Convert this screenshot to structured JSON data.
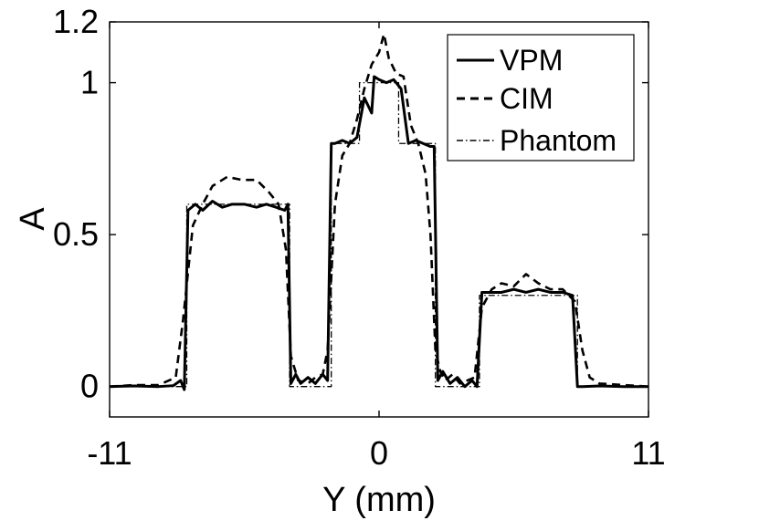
{
  "chart_data": {
    "type": "line",
    "title": "",
    "xlabel": "Y (mm)",
    "ylabel": "A",
    "xlim": [
      -11,
      11
    ],
    "ylim": [
      -0.1,
      1.2
    ],
    "xticks": [
      -11,
      0,
      11
    ],
    "xtick_labels": [
      "-11",
      "0",
      "11"
    ],
    "yticks": [
      0,
      0.5,
      1,
      1.2
    ],
    "ytick_labels": [
      "0",
      "0.5",
      "1",
      "1.2"
    ],
    "grid": false,
    "legend_position": "top-right",
    "series": [
      {
        "name": "VPM",
        "style": "solid",
        "color": "#000000",
        "x": [
          -11,
          -10,
          -9,
          -8.4,
          -8.1,
          -7.95,
          -7.8,
          -7.5,
          -7.2,
          -6.8,
          -6.4,
          -6,
          -5.5,
          -5,
          -4.6,
          -4.2,
          -3.85,
          -3.72,
          -3.6,
          -3.4,
          -3.2,
          -2.9,
          -2.6,
          -2.3,
          -2.1,
          -1.95,
          -1.8,
          -1.5,
          -1.2,
          -0.9,
          -0.6,
          -0.3,
          -0.2,
          0,
          0.3,
          0.6,
          0.9,
          1.2,
          1.5,
          1.8,
          2.1,
          2.25,
          2.4,
          2.6,
          2.9,
          3.2,
          3.5,
          3.8,
          4,
          4.2,
          4.5,
          5,
          5.5,
          6,
          6.5,
          7,
          7.5,
          7.9,
          8.1,
          8.3,
          9,
          10,
          11
        ],
        "y": [
          0,
          0.002,
          0,
          0.003,
          0.02,
          -0.01,
          0.58,
          0.6,
          0.58,
          0.61,
          0.59,
          0.6,
          0.6,
          0.59,
          0.6,
          0.59,
          0.58,
          0.6,
          0.01,
          0.04,
          0.01,
          0.03,
          0.01,
          0.04,
          0.02,
          0.8,
          0.8,
          0.81,
          0.8,
          0.82,
          0.95,
          0.9,
          1.02,
          1.01,
          1.0,
          1.01,
          0.98,
          0.8,
          0.81,
          0.8,
          0.79,
          0.79,
          0.02,
          0.05,
          0.01,
          0.03,
          0.0,
          0.02,
          0.0,
          0.31,
          0.31,
          0.31,
          0.32,
          0.31,
          0.32,
          0.31,
          0.31,
          0.3,
          0.0,
          0.0,
          0.002,
          0,
          0
        ]
      },
      {
        "name": "CIM",
        "style": "dashed",
        "color": "#000000",
        "x": [
          -11,
          -10,
          -9,
          -8.3,
          -8,
          -7.6,
          -7.2,
          -6.8,
          -6.2,
          -5.6,
          -5,
          -4.5,
          -4.1,
          -3.8,
          -3.6,
          -3.3,
          -2.9,
          -2.6,
          -2.3,
          -2.1,
          -1.8,
          -1.5,
          -1.2,
          -0.9,
          -0.6,
          -0.3,
          0,
          0.2,
          0.4,
          0.7,
          1,
          1.3,
          1.6,
          1.9,
          2.1,
          2.3,
          2.5,
          2.7,
          3,
          3.3,
          3.6,
          3.9,
          4.2,
          4.6,
          5,
          5.5,
          6,
          6.5,
          7,
          7.5,
          8,
          8.3,
          8.6,
          9,
          10,
          11
        ],
        "y": [
          0,
          0.005,
          0.005,
          0.03,
          0.22,
          0.53,
          0.6,
          0.66,
          0.69,
          0.68,
          0.68,
          0.64,
          0.6,
          0.45,
          0.1,
          0.02,
          0.01,
          0.03,
          0.04,
          0.12,
          0.6,
          0.76,
          0.8,
          0.88,
          0.98,
          1.06,
          1.1,
          1.16,
          1.08,
          1.03,
          1.02,
          0.86,
          0.8,
          0.7,
          0.5,
          0.12,
          0.05,
          0.02,
          0.04,
          0.01,
          0.02,
          0.03,
          0.26,
          0.32,
          0.34,
          0.33,
          0.37,
          0.34,
          0.32,
          0.32,
          0.28,
          0.12,
          0.03,
          0.01,
          0.005,
          0
        ]
      },
      {
        "name": "Phantom",
        "style": "dashdot",
        "color": "#000000",
        "x": [
          -11,
          -7.85,
          -7.85,
          -3.65,
          -3.65,
          -1.95,
          -1.95,
          -0.8,
          -0.8,
          0.8,
          0.8,
          2.3,
          2.3,
          4.1,
          4.1,
          8.1,
          8.1,
          11
        ],
        "y": [
          0,
          0,
          0.6,
          0.6,
          0,
          0,
          0.8,
          0.8,
          1.0,
          1.0,
          0.8,
          0.8,
          0,
          0,
          0.3,
          0.3,
          0,
          0
        ]
      }
    ]
  }
}
